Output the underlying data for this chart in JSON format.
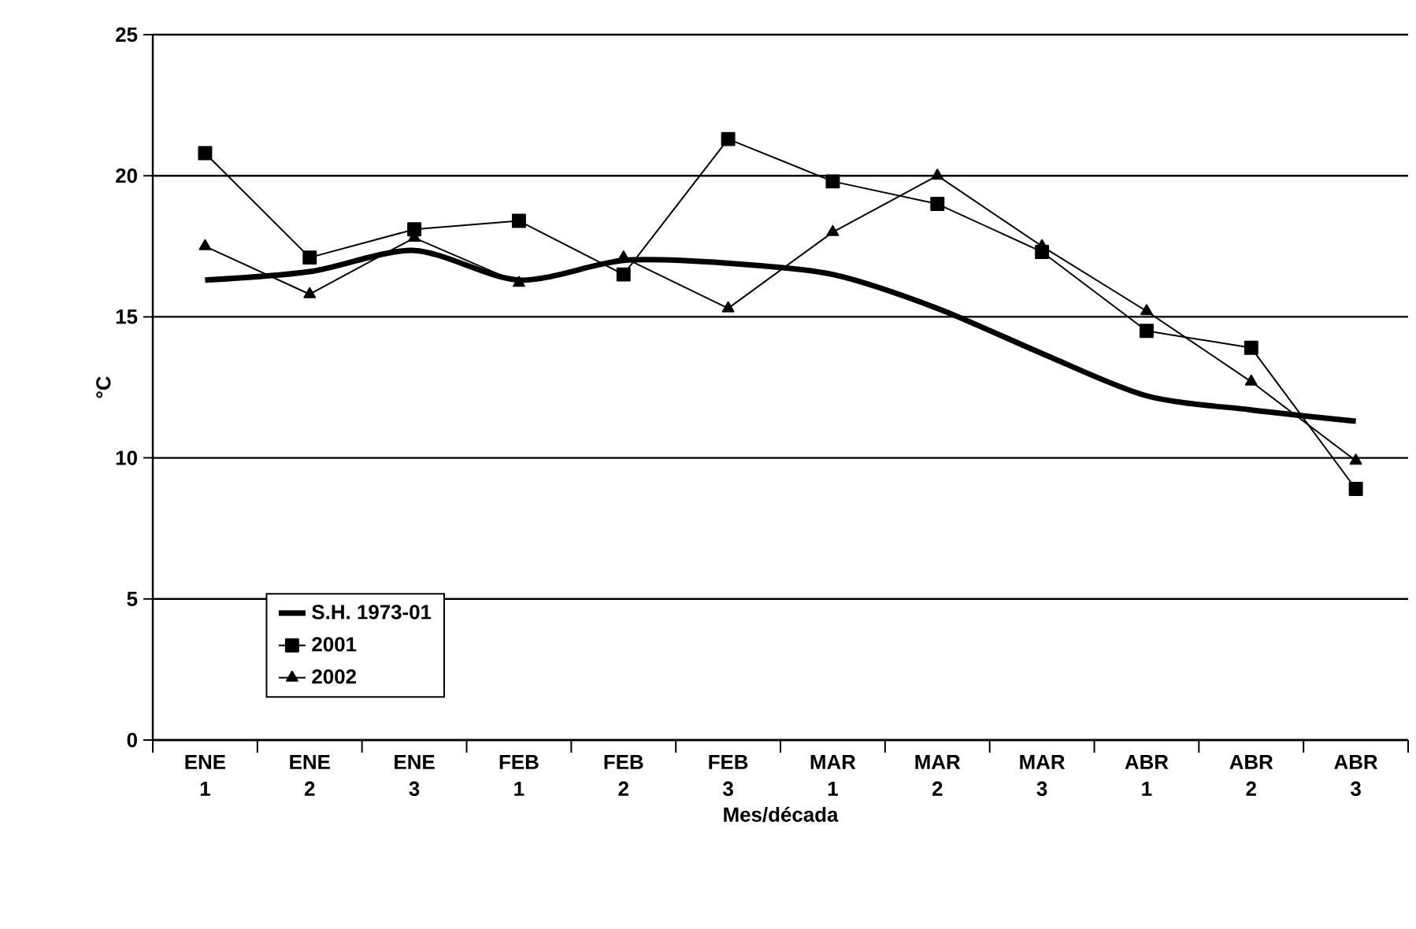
{
  "chart_data": {
    "type": "line",
    "xlabel": "Mes/década",
    "ylabel": "°C",
    "categories": [
      "ENE 1",
      "ENE 2",
      "ENE 3",
      "FEB 1",
      "FEB 2",
      "FEB 3",
      "MAR 1",
      "MAR 2",
      "MAR 3",
      "ABR 1",
      "ABR 2",
      "ABR 3"
    ],
    "series": [
      {
        "name": "S.H. 1973-01",
        "color": "#000000",
        "marker": "none",
        "values": [
          16.3,
          16.6,
          17.35,
          16.3,
          17.0,
          16.9,
          16.5,
          15.3,
          13.7,
          12.2,
          11.7,
          11.3
        ]
      },
      {
        "name": "2001",
        "color": "#000000",
        "marker": "square",
        "values": [
          20.8,
          17.1,
          18.1,
          18.4,
          16.5,
          21.3,
          19.8,
          19.0,
          17.3,
          14.5,
          13.9,
          8.9
        ]
      },
      {
        "name": "2002",
        "color": "#000000",
        "marker": "triangle",
        "values": [
          17.5,
          15.8,
          17.8,
          16.2,
          17.1,
          15.3,
          18.0,
          20.0,
          17.5,
          15.2,
          12.7,
          9.9
        ]
      }
    ],
    "ylim": [
      0,
      25
    ],
    "yticks": [
      0,
      5,
      10,
      15,
      20,
      25
    ],
    "grid": "y",
    "legend": "bottom left"
  }
}
